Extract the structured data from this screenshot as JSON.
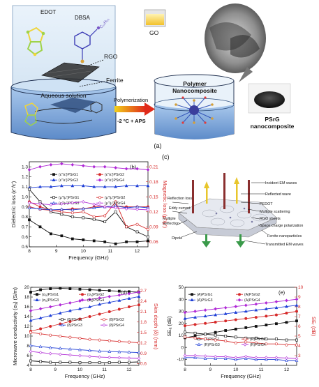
{
  "colors": {
    "black": "#111111",
    "red": "#d62a2a",
    "blue": "#1f3fd6",
    "magenta": "#b02ad6",
    "beaker_fill": "#dbe9f5",
    "liquid": "#7fa7d8",
    "arrow_grad_start": "#f2d21a",
    "arrow_grad_end": "#e02a1a"
  },
  "schematic": {
    "labels": {
      "edot": "EDOT",
      "dbsa": "DBSA",
      "dbsa_chain": "C₁₂H₂₅",
      "rgo": "RGO",
      "go": "GO",
      "ferrite": "Ferrite",
      "aqueous": "Aqueous solution",
      "polymerization": "Polymerization",
      "condition": "-2 ºC + APS",
      "polymer": "Polymer Nanocomposite",
      "psrg": "PSrG nanocomposite",
      "panel_a": "(a)"
    }
  },
  "mechanism": {
    "panel_c": "(c)",
    "labels": {
      "incident": "Incident EM waves",
      "reflected": "Reflected wave",
      "pedot": "PEDOT",
      "multiple_scattering": "Multiple scattering",
      "rgo_sheets": "RGO sheets",
      "space_charge": "Space charge polarization",
      "ferrite_np": "Ferrite nanoparticles",
      "transmitted": "Transmitted EM waves",
      "reflection_loss": "Reflection loss",
      "eddy": "Eddy current",
      "multiple_reflection": "Multiple Reflection",
      "dipole": "Dipole"
    }
  },
  "chart_data": [
    {
      "id": "b",
      "panel_label": "(b)",
      "type": "line",
      "xlabel": "Frequency (GHz)",
      "ylabel": "Dielectric loss (ε''/ε')",
      "y2label": "Magnetic loss (μ''/μ')",
      "xlim": [
        8,
        12.4
      ],
      "ylim": [
        0.5,
        1.35
      ],
      "y2lim": [
        0.05,
        0.22
      ],
      "xticks": [
        "8",
        "9",
        "10",
        "11",
        "12"
      ],
      "yticks": [
        "0.5",
        "0.6",
        "0.7",
        "0.8",
        "0.9",
        "1.0",
        "1.1",
        "1.2",
        "1.3"
      ],
      "y2ticks": [
        "0.06",
        "0.09",
        "0.12",
        "0.15",
        "0.18",
        "0.21"
      ],
      "x": [
        8.0,
        8.4,
        8.8,
        9.2,
        9.6,
        10.0,
        10.4,
        10.8,
        11.2,
        11.6,
        12.0,
        12.4
      ],
      "series": [
        {
          "name": "(ε''/ε')PSrG1",
          "axis": "left",
          "color": "#111111",
          "values": [
            0.77,
            0.7,
            0.63,
            0.61,
            0.58,
            0.57,
            0.56,
            0.55,
            0.53,
            0.55,
            0.55,
            0.56
          ]
        },
        {
          "name": "(ε''/ε')PSrG2",
          "axis": "left",
          "color": "#d62a2a",
          "values": [
            0.95,
            0.9,
            0.87,
            0.87,
            0.88,
            0.88,
            0.9,
            0.9,
            0.91,
            0.9,
            0.9,
            0.9
          ]
        },
        {
          "name": "(ε''/ε')PSrG3",
          "axis": "left",
          "color": "#1f3fd6",
          "values": [
            1.09,
            1.1,
            1.1,
            1.11,
            1.11,
            1.11,
            1.1,
            1.1,
            1.1,
            1.11,
            1.11,
            1.11
          ]
        },
        {
          "name": "(ε''/ε')PSrG4",
          "axis": "left",
          "color": "#b02ad6",
          "values": [
            1.27,
            1.3,
            1.32,
            1.33,
            1.32,
            1.31,
            1.3,
            1.3,
            1.29,
            1.28,
            1.28,
            1.27
          ]
        },
        {
          "name": "(μ''/μ')PSrG1",
          "axis": "right",
          "color": "#111111",
          "values": [
            0.165,
            0.14,
            0.12,
            0.115,
            0.11,
            0.108,
            0.105,
            0.1,
            0.12,
            0.09,
            0.08,
            0.07
          ]
        },
        {
          "name": "(μ''/μ')PSrG2",
          "axis": "right",
          "color": "#d62a2a",
          "values": [
            0.13,
            0.125,
            0.123,
            0.12,
            0.118,
            0.12,
            0.11,
            0.112,
            0.14,
            0.09,
            0.095,
            0.085
          ]
        },
        {
          "name": "(μ''/μ')PSrG3",
          "axis": "right",
          "color": "#1f3fd6",
          "values": [
            0.128,
            0.126,
            0.124,
            0.125,
            0.124,
            0.126,
            0.128,
            0.13,
            0.132,
            0.128,
            0.13,
            0.128
          ]
        },
        {
          "name": "(μ''/μ')PSrG4",
          "axis": "right",
          "color": "#b02ad6",
          "values": [
            0.138,
            0.136,
            0.134,
            0.136,
            0.138,
            0.14,
            0.135,
            0.13,
            0.128,
            0.126,
            0.125,
            0.124
          ]
        }
      ]
    },
    {
      "id": "d",
      "panel_label": "(d)",
      "type": "line",
      "xlabel": "Frequency (GHz)",
      "ylabel": "Microwave conductivity (σₐ) (S/m)",
      "y2label": "Skin depth (δ) (mm)",
      "xlim": [
        8,
        12.4
      ],
      "ylim": [
        4,
        20
      ],
      "y2lim": [
        0.55,
        2.8
      ],
      "xticks": [
        "8",
        "9",
        "10",
        "11",
        "12"
      ],
      "yticks": [
        "4",
        "6",
        "8",
        "10",
        "12",
        "14",
        "16",
        "18",
        "20"
      ],
      "y2ticks": [
        "0.6",
        "0.9",
        "1.2",
        "1.5",
        "1.8",
        "2.1",
        "2.4",
        "2.7"
      ],
      "x": [
        8.0,
        8.4,
        8.8,
        9.2,
        9.6,
        10.0,
        10.4,
        10.8,
        11.2,
        11.6,
        12.0,
        12.4
      ],
      "series": [
        {
          "name": "(σₐ)PSrG1",
          "axis": "left",
          "color": "#111111",
          "values": [
            19.0,
            19.5,
            19.7,
            19.8,
            19.7,
            19.6,
            19.5,
            19.4,
            19.3,
            19.2,
            19.1,
            19.0
          ]
        },
        {
          "name": "(σₐ)PSrG2",
          "axis": "left",
          "color": "#d62a2a",
          "values": [
            11.0,
            11.5,
            12.0,
            12.5,
            13.0,
            13.5,
            14.0,
            14.5,
            15.0,
            15.5,
            16.0,
            16.4
          ]
        },
        {
          "name": "(σₐ)PSrG3",
          "axis": "left",
          "color": "#1f3fd6",
          "values": [
            13.2,
            13.7,
            14.2,
            14.7,
            15.2,
            15.6,
            16.0,
            16.5,
            16.9,
            17.3,
            17.7,
            18.1
          ]
        },
        {
          "name": "(σₐ)PSrG4",
          "axis": "left",
          "color": "#b02ad6",
          "values": [
            15.2,
            15.6,
            16.0,
            16.4,
            16.8,
            17.2,
            17.5,
            17.8,
            18.1,
            18.4,
            18.7,
            19.0
          ]
        },
        {
          "name": "(δ)PSrG1",
          "axis": "right",
          "color": "#111111",
          "values": [
            0.68,
            0.66,
            0.64,
            0.64,
            0.64,
            0.63,
            0.63,
            0.63,
            0.63,
            0.64,
            0.64,
            0.65
          ]
        },
        {
          "name": "(δ)PSrG2",
          "axis": "right",
          "color": "#d62a2a",
          "values": [
            1.5,
            1.46,
            1.42,
            1.39,
            1.36,
            1.33,
            1.3,
            1.28,
            1.26,
            1.24,
            1.22,
            1.2
          ]
        },
        {
          "name": "(δ)PSrG3",
          "axis": "right",
          "color": "#1f3fd6",
          "values": [
            1.12,
            1.09,
            1.06,
            1.04,
            1.02,
            1.0,
            0.98,
            0.96,
            0.95,
            0.94,
            0.93,
            0.92
          ]
        },
        {
          "name": "(δ)PSrG4",
          "axis": "right",
          "color": "#b02ad6",
          "values": [
            0.95,
            0.92,
            0.89,
            0.87,
            0.85,
            0.83,
            0.81,
            0.79,
            0.78,
            0.77,
            0.76,
            0.75
          ]
        }
      ]
    },
    {
      "id": "e",
      "panel_label": "(e)",
      "type": "line",
      "xlabel": "Frequency (GHz)",
      "ylabel": "SEₐ (dB)",
      "y2label": "SEᵣ (dB)",
      "xlim": [
        8,
        12.4
      ],
      "ylim": [
        -15,
        50
      ],
      "y2lim": [
        2,
        10
      ],
      "xticks": [
        "8",
        "9",
        "10",
        "11",
        "12"
      ],
      "yticks": [
        "-10",
        "0",
        "10",
        "20",
        "30",
        "40",
        "50"
      ],
      "y2ticks": [
        "3",
        "4",
        "5",
        "6",
        "7",
        "8",
        "9",
        "10"
      ],
      "x": [
        8.0,
        8.4,
        8.8,
        9.2,
        9.6,
        10.0,
        10.4,
        10.8,
        11.2,
        11.6,
        12.0,
        12.4
      ],
      "series": [
        {
          "name": "(A)PSrG1",
          "axis": "left",
          "color": "#111111",
          "values": [
            8.0,
            9.5,
            11.0,
            12.5,
            14.0,
            15.2,
            16.4,
            17.5,
            18.6,
            19.7,
            20.8,
            22.0
          ]
        },
        {
          "name": "(A)PSrG2",
          "axis": "left",
          "color": "#d62a2a",
          "values": [
            18.0,
            19.0,
            20.0,
            21.0,
            22.0,
            23.0,
            24.0,
            25.0,
            26.0,
            27.0,
            28.5,
            30.0
          ]
        },
        {
          "name": "(A)PSrG3",
          "axis": "left",
          "color": "#1f3fd6",
          "values": [
            24.0,
            25.0,
            26.0,
            27.0,
            28.0,
            29.0,
            30.0,
            31.0,
            32.0,
            33.0,
            34.0,
            35.0
          ]
        },
        {
          "name": "(A)PSrG4",
          "axis": "left",
          "color": "#b02ad6",
          "values": [
            29.0,
            30.0,
            31.0,
            32.0,
            33.0,
            34.0,
            35.0,
            36.0,
            37.0,
            38.0,
            39.0,
            40.0
          ]
        },
        {
          "name": "(R)PSrG1",
          "axis": "right",
          "color": "#111111",
          "values": [
            5.4,
            5.3,
            5.2,
            5.1,
            5.0,
            4.9,
            4.8,
            4.8,
            4.7,
            4.7,
            4.6,
            4.6
          ]
        },
        {
          "name": "(R)PSrG2",
          "axis": "right",
          "color": "#d62a2a",
          "values": [
            4.9,
            4.8,
            4.7,
            4.6,
            4.5,
            4.3,
            4.4,
            4.3,
            4.2,
            4.2,
            4.1,
            4.1
          ]
        },
        {
          "name": "(R)PSrG3",
          "axis": "right",
          "color": "#1f3fd6",
          "values": [
            2.8,
            2.8,
            2.7,
            2.7,
            2.7,
            2.6,
            2.7,
            2.6,
            2.6,
            2.6,
            2.5,
            2.5
          ]
        },
        {
          "name": "(R)PSrG4",
          "axis": "right",
          "color": "#b02ad6",
          "values": [
            3.0,
            3.0,
            2.95,
            2.9,
            2.9,
            2.8,
            2.9,
            2.8,
            2.8,
            2.8,
            2.75,
            2.7
          ]
        }
      ]
    }
  ]
}
